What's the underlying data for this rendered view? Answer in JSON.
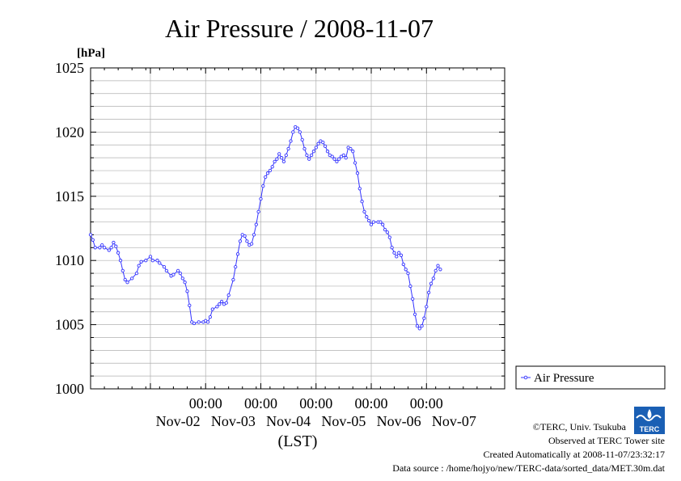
{
  "chart_data": {
    "type": "line",
    "title": "Air Pressure / 2008-11-07",
    "ylabel": "[hPa]",
    "xlabel": "(LST)",
    "ylim": [
      1000,
      1025
    ],
    "yticks": [
      1000,
      1005,
      1010,
      1015,
      1020,
      1025
    ],
    "xlim_hours": [
      -50,
      130
    ],
    "x_ticks": [
      {
        "time": "00:00",
        "date": "Nov-02"
      },
      {
        "time": "00:00",
        "date": "Nov-03"
      },
      {
        "time": "00:00",
        "date": "Nov-04"
      },
      {
        "time": "00:00",
        "date": "Nov-05"
      },
      {
        "time": "00:00",
        "date": "Nov-06"
      },
      {
        "time": "00:00",
        "date": "Nov-07"
      }
    ],
    "grid": true,
    "legend_position": "right",
    "series": [
      {
        "name": "Air Pressure",
        "color": "#3333ff",
        "points": [
          [
            "-50",
            1012.0
          ],
          [
            "-49",
            1011.6
          ],
          [
            "-48",
            1011.0
          ],
          [
            "-46",
            1011.0
          ],
          [
            "-45",
            1011.2
          ],
          [
            "-44",
            1011.0
          ],
          [
            "-42",
            1010.8
          ],
          [
            "-41",
            1011.0
          ],
          [
            "-40",
            1011.4
          ],
          [
            "-39",
            1011.1
          ],
          [
            "-38",
            1010.6
          ],
          [
            "-37",
            1010.0
          ],
          [
            "-36",
            1009.2
          ],
          [
            "-35",
            1008.5
          ],
          [
            "-34",
            1008.3
          ],
          [
            "-32",
            1008.6
          ],
          [
            "-30",
            1009.0
          ],
          [
            "-29",
            1009.6
          ],
          [
            "-28",
            1009.9
          ],
          [
            "-26",
            1010.0
          ],
          [
            "-24",
            1010.3
          ],
          [
            "-23",
            1010.0
          ],
          [
            "-21",
            1010.0
          ],
          [
            "-20",
            1009.8
          ],
          [
            "-18",
            1009.5
          ],
          [
            "-17",
            1009.2
          ],
          [
            "-15",
            1008.8
          ],
          [
            "-14",
            1008.9
          ],
          [
            "-12",
            1009.2
          ],
          [
            "-11",
            1009.0
          ],
          [
            "-10",
            1008.6
          ],
          [
            "-9",
            1008.3
          ],
          [
            "-8",
            1007.6
          ],
          [
            "-7",
            1006.5
          ],
          [
            "-6",
            1005.2
          ],
          [
            "-5",
            1005.1
          ],
          [
            "-3",
            1005.2
          ],
          [
            "-1",
            1005.2
          ],
          [
            "0",
            1005.3
          ],
          [
            "1",
            1005.2
          ],
          [
            "2",
            1005.6
          ],
          [
            "3",
            1006.2
          ],
          [
            "5",
            1006.4
          ],
          [
            "6",
            1006.6
          ],
          [
            "7",
            1006.8
          ],
          [
            "8",
            1006.6
          ],
          [
            "9",
            1006.7
          ],
          [
            "10",
            1007.3
          ],
          [
            "12",
            1008.5
          ],
          [
            "13",
            1009.5
          ],
          [
            "14",
            1010.5
          ],
          [
            "15",
            1011.5
          ],
          [
            "16",
            1012.0
          ],
          [
            "17",
            1011.9
          ],
          [
            "18",
            1011.5
          ],
          [
            "19",
            1011.2
          ],
          [
            "20",
            1011.3
          ],
          [
            "21",
            1012.0
          ],
          [
            "22",
            1012.8
          ],
          [
            "23",
            1013.8
          ],
          [
            "24",
            1014.8
          ],
          [
            "25",
            1015.8
          ],
          [
            "26",
            1016.5
          ],
          [
            "27",
            1016.8
          ],
          [
            "28",
            1017.0
          ],
          [
            "29",
            1017.3
          ],
          [
            "30",
            1017.7
          ],
          [
            "31",
            1017.9
          ],
          [
            "32",
            1018.3
          ],
          [
            "33",
            1018.0
          ],
          [
            "34",
            1017.7
          ],
          [
            "35",
            1018.2
          ],
          [
            "36",
            1018.7
          ],
          [
            "37",
            1019.3
          ],
          [
            "38",
            1020.0
          ],
          [
            "39",
            1020.4
          ],
          [
            "40",
            1020.3
          ],
          [
            "41",
            1020.0
          ],
          [
            "42",
            1019.4
          ],
          [
            "43",
            1018.7
          ],
          [
            "44",
            1018.2
          ],
          [
            "45",
            1017.9
          ],
          [
            "46",
            1018.2
          ],
          [
            "47",
            1018.5
          ],
          [
            "48",
            1018.8
          ],
          [
            "49",
            1019.1
          ],
          [
            "50",
            1019.3
          ],
          [
            "51",
            1019.2
          ],
          [
            "52",
            1018.9
          ],
          [
            "53",
            1018.5
          ],
          [
            "54",
            1018.2
          ],
          [
            "55",
            1018.1
          ],
          [
            "56",
            1017.9
          ],
          [
            "57",
            1017.7
          ],
          [
            "58",
            1017.9
          ],
          [
            "59",
            1018.1
          ],
          [
            "60",
            1018.2
          ],
          [
            "61",
            1018.0
          ],
          [
            "62",
            1018.8
          ],
          [
            "63",
            1018.7
          ],
          [
            "64",
            1018.5
          ],
          [
            "65",
            1017.6
          ],
          [
            "66",
            1016.8
          ],
          [
            "67",
            1015.6
          ],
          [
            "68",
            1014.6
          ],
          [
            "69",
            1013.8
          ],
          [
            "70",
            1013.4
          ],
          [
            "71",
            1013.1
          ],
          [
            "72",
            1012.8
          ],
          [
            "73",
            1013.0
          ],
          [
            "75",
            1013.0
          ],
          [
            "76",
            1013.0
          ],
          [
            "77",
            1012.8
          ],
          [
            "78",
            1012.4
          ],
          [
            "79",
            1012.2
          ],
          [
            "80",
            1011.8
          ],
          [
            "81",
            1011.0
          ],
          [
            "82",
            1010.6
          ],
          [
            "83",
            1010.3
          ],
          [
            "84",
            1010.6
          ],
          [
            "85",
            1010.4
          ],
          [
            "86",
            1009.7
          ],
          [
            "87",
            1009.3
          ],
          [
            "88",
            1009.0
          ],
          [
            "89",
            1008.0
          ],
          [
            "90",
            1007.0
          ],
          [
            "91",
            1005.8
          ],
          [
            "92",
            1004.9
          ],
          [
            "93",
            1004.7
          ],
          [
            "94",
            1004.9
          ],
          [
            "95",
            1005.5
          ],
          [
            "96",
            1006.4
          ],
          [
            "97",
            1007.5
          ],
          [
            "98",
            1008.2
          ],
          [
            "99",
            1008.6
          ],
          [
            "100",
            1009.2
          ],
          [
            "101",
            1009.6
          ],
          [
            "102",
            1009.3
          ]
        ]
      }
    ]
  },
  "credits": {
    "copyright": "©TERC, Univ. Tsukuba",
    "observed": "Observed at TERC Tower site",
    "created": "Created Automatically at 2008-11-07/23:32:17",
    "source": "Data source : /home/hojyo/new/TERC-data/sorted_data/MET.30m.dat",
    "logo_text": "TERC"
  }
}
